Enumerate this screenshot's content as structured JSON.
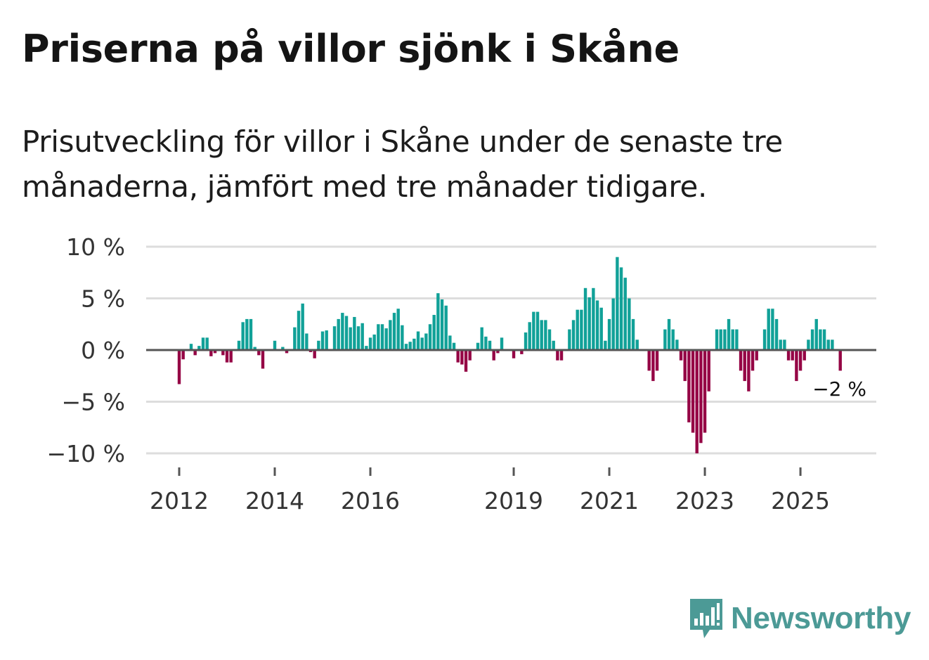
{
  "title": "Priserna på villor sjönk i Skåne",
  "subtitle": "Prisutveckling för villor i Skåne under de senaste tre månaderna, jämfört med tre månader tidigare.",
  "brand": {
    "name": "Newsworthy",
    "color": "#4c9a96",
    "icon": "newsworthy-logo-icon"
  },
  "colors": {
    "positive": "#11a198",
    "negative": "#950545",
    "grid": "#dddddd",
    "zero_line": "#555555",
    "text": "#333333"
  },
  "chart_data": {
    "type": "bar",
    "title": "Priserna på villor sjönk i Skåne",
    "xlabel": "",
    "ylabel": "",
    "ylim": [
      -10,
      10
    ],
    "y_ticks": [
      10,
      5,
      0,
      -5,
      -10
    ],
    "y_tick_labels": [
      "10 %",
      "5 %",
      "0 %",
      "−5 %",
      "−10 %"
    ],
    "x_start_year": 2011,
    "x_end_year": 2026,
    "x_tick_years": [
      2012,
      2014,
      2016,
      2019,
      2021,
      2023,
      2025
    ],
    "x_tick_labels": [
      "2012",
      "2014",
      "2016",
      "2019",
      "2021",
      "2023",
      "2025"
    ],
    "annotation": "−2 %",
    "series": [
      {
        "name": "Prisutveckling",
        "unit": "%",
        "values": [
          0,
          0,
          0,
          0,
          0,
          0,
          0,
          0,
          0,
          0,
          0,
          0,
          -3.3,
          -0.9,
          0,
          0.6,
          -0.5,
          0.4,
          1.2,
          1.2,
          -0.6,
          -0.3,
          0,
          -0.5,
          -1.2,
          -1.2,
          0,
          0.9,
          2.7,
          3,
          3,
          0.3,
          -0.5,
          -1.8,
          0,
          0,
          0.9,
          0,
          0.3,
          -0.3,
          0,
          2.2,
          3.8,
          4.5,
          1.6,
          -0.2,
          -0.8,
          0.9,
          1.8,
          1.9,
          0,
          2.3,
          3,
          3.6,
          3.3,
          2.2,
          3.2,
          2.3,
          2.6,
          0.4,
          1.2,
          1.5,
          2.5,
          2.5,
          2.1,
          2.9,
          3.6,
          4,
          2.4,
          0.6,
          0.8,
          1.1,
          1.8,
          1.2,
          1.6,
          2.5,
          3.4,
          5.5,
          4.9,
          4.3,
          1.4,
          0.7,
          -1.2,
          -1.4,
          -2.1,
          -1,
          0,
          0.7,
          2.2,
          1.3,
          0.9,
          -1,
          -0.3,
          1.2,
          0,
          0,
          -0.8,
          0,
          -0.4,
          1.7,
          2.7,
          3.7,
          3.7,
          2.9,
          2.9,
          2,
          0.9,
          -1,
          -1,
          0,
          2,
          2.9,
          3.9,
          3.9,
          6,
          5.1,
          6,
          4.8,
          4.1,
          0.9,
          3,
          5,
          9,
          8,
          7,
          5,
          3,
          1,
          0,
          0,
          -2,
          -3,
          -2,
          0,
          2,
          3,
          2,
          1,
          -1,
          -3,
          -7,
          -8,
          -10,
          -9,
          -8,
          -4,
          0,
          2,
          2,
          2,
          3,
          2,
          2,
          -2,
          -3,
          -4,
          -2,
          -1,
          0,
          2,
          4,
          4,
          3,
          1,
          1,
          -1,
          -1,
          -3,
          -2,
          -1,
          1,
          2,
          3,
          2,
          2,
          1,
          1,
          0,
          -2,
          0
        ]
      }
    ]
  }
}
